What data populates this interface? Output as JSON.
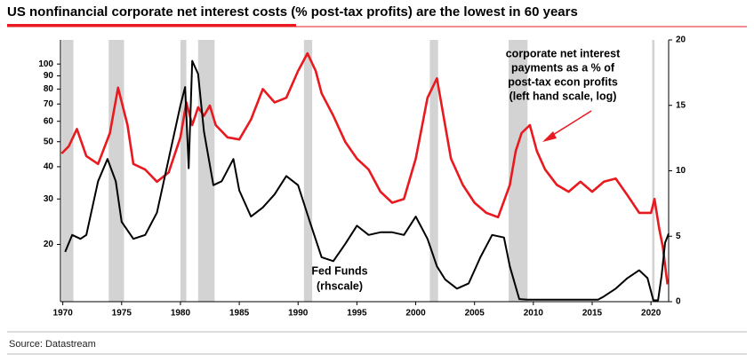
{
  "chart_data": {
    "type": "line",
    "title": "US nonfinancial corporate net interest costs (% post-tax profits) are the lowest in 60 years",
    "source": "Source: Datastream",
    "annotations": [
      {
        "lines": [
          "corporate net interest",
          "payments as a % of",
          "post-tax econ profits",
          "(left hand scale, log)"
        ]
      },
      {
        "lines": [
          "Fed Funds",
          "(rhscale)"
        ]
      }
    ],
    "xlim": [
      1969.8,
      2021.5
    ],
    "xticks": [
      1970,
      1975,
      1980,
      1985,
      1990,
      1995,
      2000,
      2005,
      2010,
      2015,
      2020
    ],
    "ylim": [
      12,
      124
    ],
    "yscale": "log",
    "yticks": [
      20,
      30,
      40,
      50,
      60,
      70,
      80,
      90,
      100
    ],
    "y2lim": [
      0,
      20
    ],
    "y2ticks": [
      0,
      5,
      10,
      15,
      20
    ],
    "recessions": [
      [
        1969.9,
        1970.9
      ],
      [
        1973.9,
        1975.2
      ],
      [
        1980.0,
        1980.5
      ],
      [
        1981.5,
        1982.9
      ],
      [
        1990.5,
        1991.2
      ],
      [
        2001.2,
        2001.9
      ],
      [
        2007.9,
        2009.5
      ],
      [
        2020.1,
        2020.3
      ]
    ],
    "recession_color": "#d3d3d3",
    "series": [
      {
        "color": "#e8191f",
        "axis": "y",
        "x": [
          1969.9,
          1970.5,
          1971.2,
          1972,
          1973,
          1974,
          1974.7,
          1975.5,
          1976,
          1977,
          1978,
          1979,
          1980,
          1980.5,
          1981,
          1981.5,
          1982,
          1982.5,
          1983,
          1984,
          1985,
          1986,
          1987,
          1988,
          1989,
          1990,
          1990.8,
          1991.5,
          1992,
          1993,
          1994,
          1995,
          1996,
          1997,
          1998,
          1999,
          2000,
          2001,
          2001.8,
          2002.5,
          2003,
          2004,
          2005,
          2006,
          2007,
          2008,
          2008.5,
          2009,
          2009.7,
          2010.3,
          2011,
          2012,
          2013,
          2014,
          2015,
          2016,
          2017,
          2018,
          2019,
          2020,
          2020.3,
          2020.7,
          2021,
          2021.4
        ],
        "values": [
          45,
          48,
          56,
          44,
          41,
          54,
          81,
          58,
          41,
          39,
          35,
          38,
          52,
          71,
          58,
          68,
          63,
          69,
          58,
          52,
          51,
          61,
          80,
          71,
          74,
          94,
          110,
          94,
          77,
          63,
          50,
          43,
          39,
          32,
          29,
          30,
          43,
          74,
          88,
          58,
          43,
          34,
          29,
          26.5,
          25.5,
          34,
          46,
          54,
          58,
          46,
          39,
          34,
          32,
          35,
          32,
          35,
          36,
          31,
          26.5,
          26.5,
          30,
          23,
          19.6,
          14
        ]
      },
      {
        "color": "#000000",
        "axis": "y2",
        "x": [
          1970.2,
          1970.8,
          1971.5,
          1972,
          1973,
          1973.8,
          1974.5,
          1975,
          1976,
          1977,
          1978,
          1979,
          1980,
          1980.4,
          1980.7,
          1981,
          1981.5,
          1982,
          1982.8,
          1983.5,
          1984.5,
          1985,
          1986,
          1987,
          1988,
          1989,
          1990,
          1991,
          1992,
          1993,
          1994,
          1995,
          1996,
          1997,
          1998,
          1999,
          2000,
          2001,
          2001.8,
          2002.5,
          2003.5,
          2004.5,
          2005.5,
          2006.5,
          2007.5,
          2008,
          2008.8,
          2009.5,
          2012,
          2015.5,
          2016,
          2017,
          2018,
          2019,
          2019.7,
          2020.2,
          2020.6,
          2020.9,
          2021.2,
          2021.5
        ],
        "values": [
          3.8,
          5.1,
          4.8,
          5.1,
          9.2,
          10.9,
          9.2,
          6.1,
          4.8,
          5.1,
          6.8,
          10.9,
          15,
          16.4,
          10.2,
          18.4,
          17.4,
          13,
          8.9,
          9.2,
          10.9,
          8.5,
          6.5,
          7.2,
          8.2,
          9.6,
          8.9,
          6.1,
          3.4,
          3.1,
          4.4,
          5.8,
          5.1,
          5.3,
          5.3,
          5.1,
          6.5,
          4.8,
          2.7,
          1.7,
          1.0,
          1.4,
          3.4,
          5.1,
          4.9,
          2.7,
          0.2,
          0.15,
          0.15,
          0.15,
          0.4,
          1.0,
          1.8,
          2.4,
          1.8,
          0.1,
          0.1,
          2,
          4.5,
          5.2
        ]
      }
    ]
  }
}
